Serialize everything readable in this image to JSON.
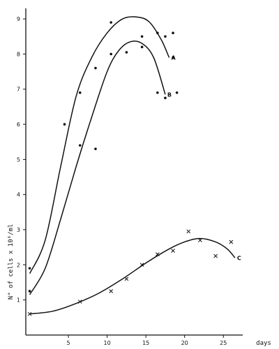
{
  "chart_data": {
    "type": "scatter",
    "title": "",
    "xlabel": "days",
    "ylabel": "N° of cells  x 10⁶/ml",
    "xlim": [
      -0.5,
      27.5
    ],
    "ylim": [
      0,
      9.3
    ],
    "x_ticks": [
      {
        "value": 5,
        "label": "5"
      },
      {
        "value": 10,
        "label": "10"
      },
      {
        "value": 15,
        "label": "15"
      },
      {
        "value": 20,
        "label": "20"
      },
      {
        "value": 25,
        "label": "25"
      }
    ],
    "y_ticks": [
      {
        "value": 1,
        "label": "1"
      },
      {
        "value": 2,
        "label": "2"
      },
      {
        "value": 3,
        "label": "3"
      },
      {
        "value": 4,
        "label": "4"
      },
      {
        "value": 5,
        "label": "5"
      },
      {
        "value": 6,
        "label": "6"
      },
      {
        "value": 7,
        "label": "7"
      },
      {
        "value": 8,
        "label": "8"
      },
      {
        "value": 9,
        "label": "9"
      }
    ],
    "series": [
      {
        "name": "A",
        "marker": "dot",
        "points": [
          [
            0,
            1.9
          ],
          [
            4.5,
            6.0
          ],
          [
            6.5,
            6.9
          ],
          [
            8.5,
            7.6
          ],
          [
            10.5,
            8.9
          ],
          [
            14.5,
            8.5
          ],
          [
            16.5,
            8.6
          ],
          [
            17.5,
            8.5
          ],
          [
            18.5,
            8.6
          ]
        ],
        "curve": [
          [
            0,
            1.75
          ],
          [
            2,
            2.7
          ],
          [
            4,
            4.8
          ],
          [
            6,
            6.8
          ],
          [
            8,
            7.9
          ],
          [
            10,
            8.6
          ],
          [
            12,
            9.0
          ],
          [
            14,
            9.05
          ],
          [
            15.5,
            8.9
          ],
          [
            17,
            8.4
          ],
          [
            18,
            7.9
          ]
        ]
      },
      {
        "name": "B",
        "marker": "dot",
        "points": [
          [
            0,
            1.25
          ],
          [
            6.5,
            5.4
          ],
          [
            8.5,
            5.3
          ],
          [
            10.5,
            8.0
          ],
          [
            12.5,
            8.05
          ],
          [
            14.5,
            8.2
          ],
          [
            16.5,
            6.9
          ],
          [
            17.5,
            6.75
          ],
          [
            18.5,
            7.9
          ],
          [
            19,
            6.9
          ]
        ],
        "curve": [
          [
            0,
            1.15
          ],
          [
            2,
            1.9
          ],
          [
            4,
            3.3
          ],
          [
            6,
            4.8
          ],
          [
            8,
            6.2
          ],
          [
            10,
            7.5
          ],
          [
            11.5,
            8.1
          ],
          [
            13,
            8.35
          ],
          [
            14.5,
            8.3
          ],
          [
            16,
            7.9
          ],
          [
            17.5,
            6.85
          ]
        ]
      },
      {
        "name": "C",
        "marker": "cross",
        "points": [
          [
            0,
            0.6
          ],
          [
            6.5,
            0.95
          ],
          [
            10.5,
            1.25
          ],
          [
            12.5,
            1.6
          ],
          [
            14.5,
            2.0
          ],
          [
            16.5,
            2.3
          ],
          [
            18.5,
            2.4
          ],
          [
            20.5,
            2.95
          ],
          [
            22,
            2.7
          ],
          [
            24,
            2.25
          ],
          [
            26,
            2.65
          ]
        ],
        "curve": [
          [
            0,
            0.6
          ],
          [
            3,
            0.68
          ],
          [
            6,
            0.9
          ],
          [
            9,
            1.2
          ],
          [
            12,
            1.6
          ],
          [
            15,
            2.05
          ],
          [
            18,
            2.45
          ],
          [
            20,
            2.65
          ],
          [
            22,
            2.75
          ],
          [
            24,
            2.65
          ],
          [
            25.5,
            2.45
          ],
          [
            26.5,
            2.2
          ]
        ]
      }
    ],
    "legend": "none",
    "grid": false
  }
}
